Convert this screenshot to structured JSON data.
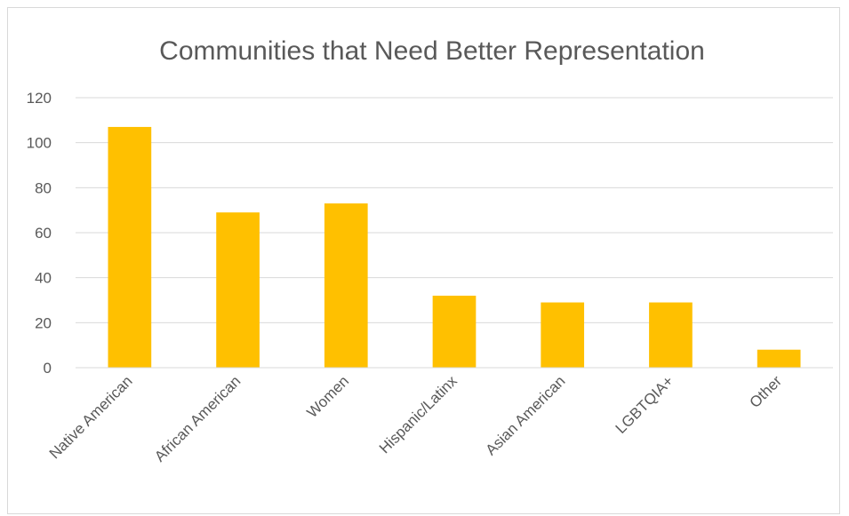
{
  "chart_data": {
    "type": "bar",
    "title": "Communities that Need Better Representation",
    "xlabel": "",
    "ylabel": "",
    "categories": [
      "Native American",
      "African American",
      "Women",
      "Hispanic/Latinx",
      "Asian American",
      "LGBTQIA+",
      "Other"
    ],
    "values": [
      107,
      69,
      73,
      32,
      29,
      29,
      8
    ],
    "ylim": [
      0,
      120
    ],
    "yticks": [
      0,
      20,
      40,
      60,
      80,
      100,
      120
    ],
    "grid": true,
    "legend": "none",
    "bar_color": "#ffc000",
    "grid_color": "#d9d9d9"
  }
}
